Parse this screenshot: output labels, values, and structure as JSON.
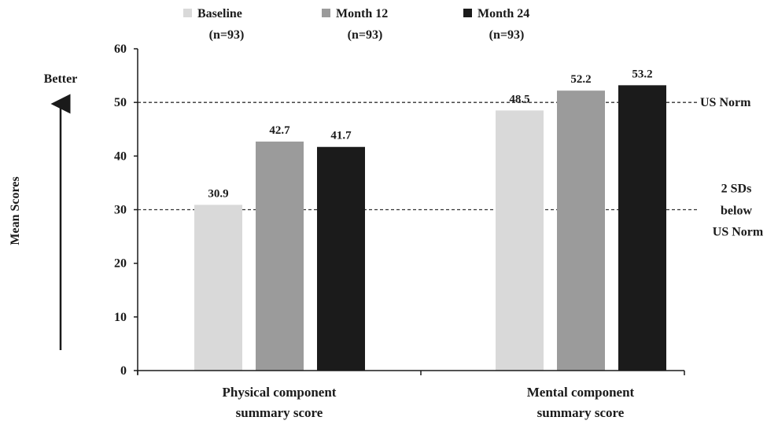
{
  "chart_data": {
    "type": "bar",
    "categories": [
      "Physical component summary score",
      "Mental component summary score"
    ],
    "category_lines": [
      [
        "Physical component",
        "summary score"
      ],
      [
        "Mental component",
        "summary score"
      ]
    ],
    "series": [
      {
        "name": "Baseline",
        "n_label": "(n=93)",
        "color": "#d9d9d9",
        "values": [
          30.9,
          48.5
        ]
      },
      {
        "name": "Month 12",
        "n_label": "(n=93)",
        "color": "#9b9b9b",
        "values": [
          42.7,
          52.2
        ]
      },
      {
        "name": "Month 24",
        "n_label": "(n=93)",
        "color": "#1b1b1b",
        "values": [
          41.7,
          53.2
        ]
      }
    ],
    "ylabel": "Mean Scores",
    "ylim": [
      0,
      60
    ],
    "yticks": [
      0,
      10,
      20,
      30,
      40,
      50,
      60
    ],
    "better_label": "Better",
    "reference_lines": [
      {
        "value": 50,
        "label_lines": [
          "US Norm"
        ]
      },
      {
        "value": 30,
        "label_lines": [
          "2 SDs",
          "below",
          "US Norm"
        ]
      }
    ],
    "legend_position": "top",
    "grid": false
  }
}
